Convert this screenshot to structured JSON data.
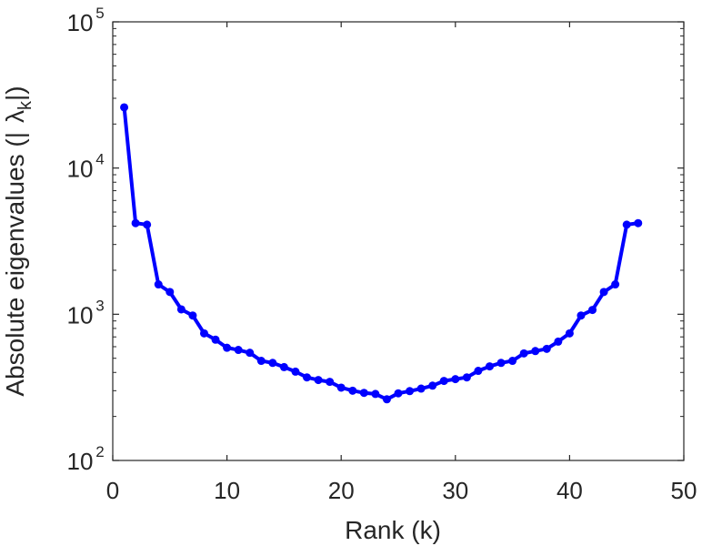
{
  "chart_data": {
    "type": "line",
    "title": "",
    "xlabel": "Rank (k)",
    "ylabel_parts": [
      "Absolute eigenvalues (|",
      "λ",
      "k",
      "|)"
    ],
    "xlim": [
      0,
      50
    ],
    "ylim": [
      100,
      100000
    ],
    "yscale": "log",
    "grid": false,
    "legend": "none",
    "x_ticks": [
      0,
      10,
      20,
      30,
      40,
      50
    ],
    "y_ticks": [
      {
        "value": 100,
        "base": "10",
        "exp": "2"
      },
      {
        "value": 1000,
        "base": "10",
        "exp": "3"
      },
      {
        "value": 10000,
        "base": "10",
        "exp": "4"
      },
      {
        "value": 100000,
        "base": "10",
        "exp": "5"
      }
    ],
    "series": [
      {
        "color": "#0000ff",
        "marker": "circle",
        "x": [
          1,
          2,
          3,
          4,
          5,
          6,
          7,
          8,
          9,
          10,
          11,
          12,
          13,
          14,
          15,
          16,
          17,
          18,
          19,
          20,
          21,
          22,
          23,
          24,
          25,
          26,
          27,
          28,
          29,
          30,
          31,
          32,
          33,
          34,
          35,
          36,
          37,
          38,
          39,
          40,
          41,
          42,
          43,
          44,
          45,
          46
        ],
        "y": [
          26000,
          4200,
          4100,
          1600,
          1420,
          1080,
          980,
          740,
          670,
          590,
          570,
          545,
          480,
          465,
          435,
          405,
          370,
          355,
          345,
          315,
          300,
          290,
          285,
          262,
          288,
          298,
          310,
          325,
          350,
          360,
          370,
          410,
          440,
          465,
          480,
          540,
          560,
          580,
          650,
          740,
          980,
          1070,
          1420,
          1600,
          4100,
          4200
        ]
      }
    ]
  }
}
